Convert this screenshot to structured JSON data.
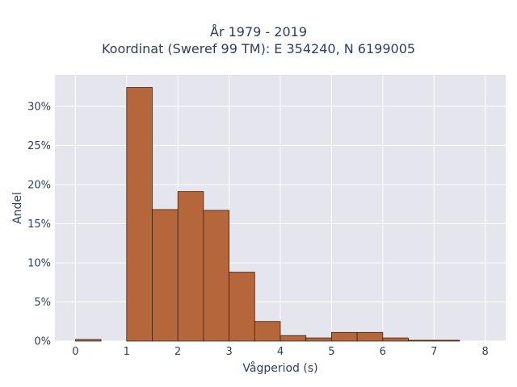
{
  "chart_data": {
    "type": "bar",
    "title_line1": "År 1979 - 2019",
    "title_line2": "Koordinat (Sweref 99 TM): E 354240, N 6199005",
    "xlabel": "Vågperiod (s)",
    "ylabel": "Andel",
    "xlim": [
      -0.4,
      8.4
    ],
    "ylim": [
      0,
      0.34
    ],
    "x_ticks": [
      0,
      1,
      2,
      3,
      4,
      5,
      6,
      7,
      8
    ],
    "y_ticks": [
      0,
      0.05,
      0.1,
      0.15,
      0.2,
      0.25,
      0.3
    ],
    "y_tick_labels": [
      "0%",
      "5%",
      "10%",
      "15%",
      "20%",
      "25%",
      "30%"
    ],
    "bin_width": 0.5,
    "bins": [
      {
        "x0": 0.0,
        "value": 0.002
      },
      {
        "x0": 1.0,
        "value": 0.324
      },
      {
        "x0": 1.5,
        "value": 0.168
      },
      {
        "x0": 2.0,
        "value": 0.191
      },
      {
        "x0": 2.5,
        "value": 0.167
      },
      {
        "x0": 3.0,
        "value": 0.088
      },
      {
        "x0": 3.5,
        "value": 0.025
      },
      {
        "x0": 4.0,
        "value": 0.007
      },
      {
        "x0": 4.5,
        "value": 0.004
      },
      {
        "x0": 5.0,
        "value": 0.011
      },
      {
        "x0": 5.5,
        "value": 0.011
      },
      {
        "x0": 6.0,
        "value": 0.004
      },
      {
        "x0": 6.5,
        "value": 0.001
      },
      {
        "x0": 7.0,
        "value": 0.001
      }
    ],
    "bar_color": "#b5673b",
    "bar_edge_color": "#3b2416",
    "plot_bg": "#e5e5ee",
    "grid": true,
    "legend": false
  }
}
